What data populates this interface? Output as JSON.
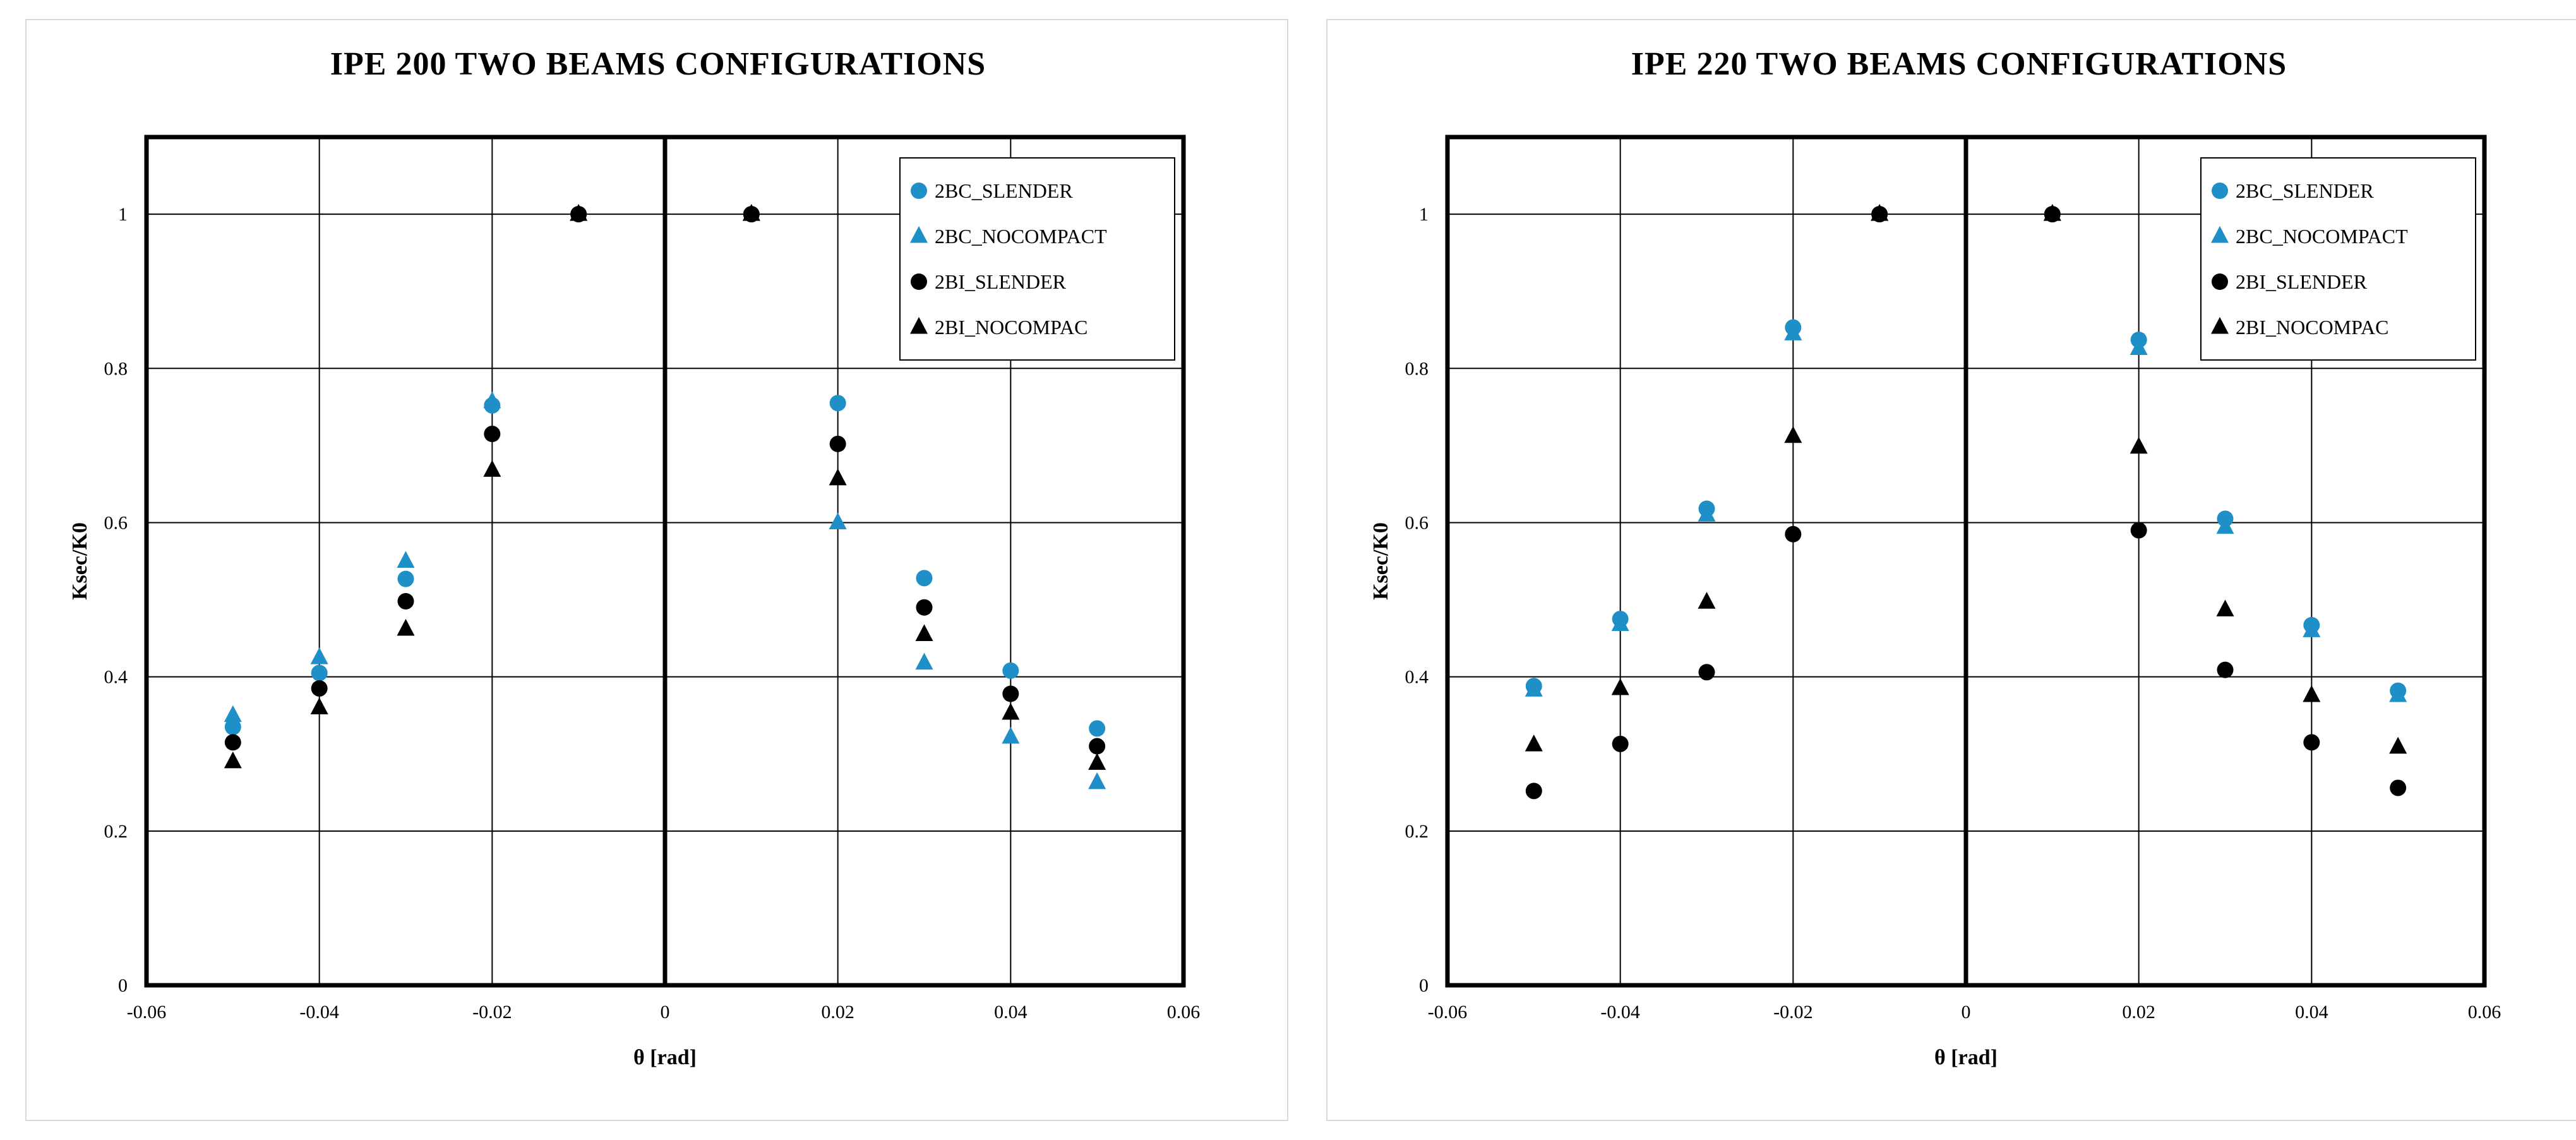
{
  "colors": {
    "blue": "#1f8fc7",
    "black": "#000000"
  },
  "chart_data": [
    {
      "type": "scatter",
      "title": "IPE 200 TWO BEAMS CONFIGURATIONS",
      "xlabel": "θ [rad]",
      "ylabel": "Ksec/K0",
      "xlim": [
        -0.06,
        0.06
      ],
      "ylim": [
        0,
        1.1
      ],
      "xticks": [
        -0.06,
        -0.04,
        -0.02,
        0,
        0.02,
        0.04,
        0.06
      ],
      "xtick_labels": [
        "-0.06",
        "-0.04",
        "-0.02",
        "0",
        "0.02",
        "0.04",
        "0.06"
      ],
      "yticks": [
        0,
        0.2,
        0.4,
        0.6,
        0.8,
        1
      ],
      "ytick_labels": [
        "0",
        "0.2",
        "0.4",
        "0.6",
        "0.8",
        "1"
      ],
      "grid": true,
      "legend_position": "top-right",
      "series": [
        {
          "name": "2BC_SLENDER",
          "marker": "circle",
          "color": "#1f8fc7",
          "x": [
            -0.05,
            -0.04,
            -0.03,
            -0.02,
            -0.01,
            0.01,
            0.02,
            0.03,
            0.04,
            0.05
          ],
          "y": [
            0.335,
            0.405,
            0.527,
            0.752,
            1.0,
            1.0,
            0.755,
            0.528,
            0.408,
            0.333
          ]
        },
        {
          "name": "2BC_NOCOMPACT",
          "marker": "triangle",
          "color": "#1f8fc7",
          "x": [
            -0.05,
            -0.04,
            -0.03,
            -0.02,
            -0.01,
            0.01,
            0.02,
            0.03,
            0.04,
            0.05
          ],
          "y": [
            0.35,
            0.425,
            0.55,
            0.757,
            1.0,
            1.0,
            0.6,
            0.418,
            0.322,
            0.263
          ]
        },
        {
          "name": "2BI_SLENDER",
          "marker": "circle",
          "color": "#000000",
          "x": [
            -0.05,
            -0.04,
            -0.03,
            -0.02,
            -0.01,
            0.01,
            0.02,
            0.03,
            0.04,
            0.05
          ],
          "y": [
            0.315,
            0.385,
            0.498,
            0.715,
            1.0,
            1.0,
            0.702,
            0.49,
            0.378,
            0.31
          ]
        },
        {
          "name": "2BI_NOCOMPAC",
          "marker": "triangle",
          "color": "#000000",
          "x": [
            -0.05,
            -0.04,
            -0.03,
            -0.02,
            -0.01,
            0.01,
            0.02,
            0.03,
            0.04,
            0.05
          ],
          "y": [
            0.29,
            0.36,
            0.462,
            0.668,
            1.0,
            1.0,
            0.657,
            0.455,
            0.353,
            0.288
          ]
        }
      ]
    },
    {
      "type": "scatter",
      "title": "IPE 220 TWO BEAMS CONFIGURATIONS",
      "xlabel": "θ [rad]",
      "ylabel": "Ksec/K0",
      "xlim": [
        -0.06,
        0.06
      ],
      "ylim": [
        0,
        1.1
      ],
      "xticks": [
        -0.06,
        -0.04,
        -0.02,
        0,
        0.02,
        0.04,
        0.06
      ],
      "xtick_labels": [
        "-0.06",
        "-0.04",
        "-0.02",
        "0",
        "0.02",
        "0.04",
        "0.06"
      ],
      "yticks": [
        0,
        0.2,
        0.4,
        0.6,
        0.8,
        1
      ],
      "ytick_labels": [
        "0",
        "0.2",
        "0.4",
        "0.6",
        "0.8",
        "1"
      ],
      "grid": true,
      "legend_position": "top-right",
      "series": [
        {
          "name": "2BC_SLENDER",
          "marker": "circle",
          "color": "#1f8fc7",
          "x": [
            -0.05,
            -0.04,
            -0.03,
            -0.02,
            -0.01,
            0.01,
            0.02,
            0.03,
            0.04,
            0.05
          ],
          "y": [
            0.388,
            0.475,
            0.618,
            0.853,
            1.0,
            1.0,
            0.837,
            0.605,
            0.467,
            0.382
          ]
        },
        {
          "name": "2BC_NOCOMPACT",
          "marker": "triangle",
          "color": "#1f8fc7",
          "x": [
            -0.05,
            -0.04,
            -0.03,
            -0.02,
            -0.01,
            0.01,
            0.02,
            0.03,
            0.04,
            0.05
          ],
          "y": [
            0.383,
            0.468,
            0.61,
            0.845,
            1.0,
            1.0,
            0.826,
            0.594,
            0.46,
            0.376
          ]
        },
        {
          "name": "2BI_SLENDER",
          "marker": "circle",
          "color": "#000000",
          "x": [
            -0.05,
            -0.04,
            -0.03,
            -0.02,
            -0.01,
            0.01,
            0.02,
            0.03,
            0.04,
            0.05
          ],
          "y": [
            0.252,
            0.313,
            0.406,
            0.585,
            1.0,
            1.0,
            0.59,
            0.409,
            0.315,
            0.256
          ]
        },
        {
          "name": "2BI_NOCOMPAC",
          "marker": "triangle",
          "color": "#000000",
          "x": [
            -0.05,
            -0.04,
            -0.03,
            -0.02,
            -0.01,
            0.01,
            0.02,
            0.03,
            0.04,
            0.05
          ],
          "y": [
            0.312,
            0.385,
            0.497,
            0.712,
            1.0,
            1.0,
            0.698,
            0.487,
            0.376,
            0.309
          ]
        }
      ]
    }
  ]
}
